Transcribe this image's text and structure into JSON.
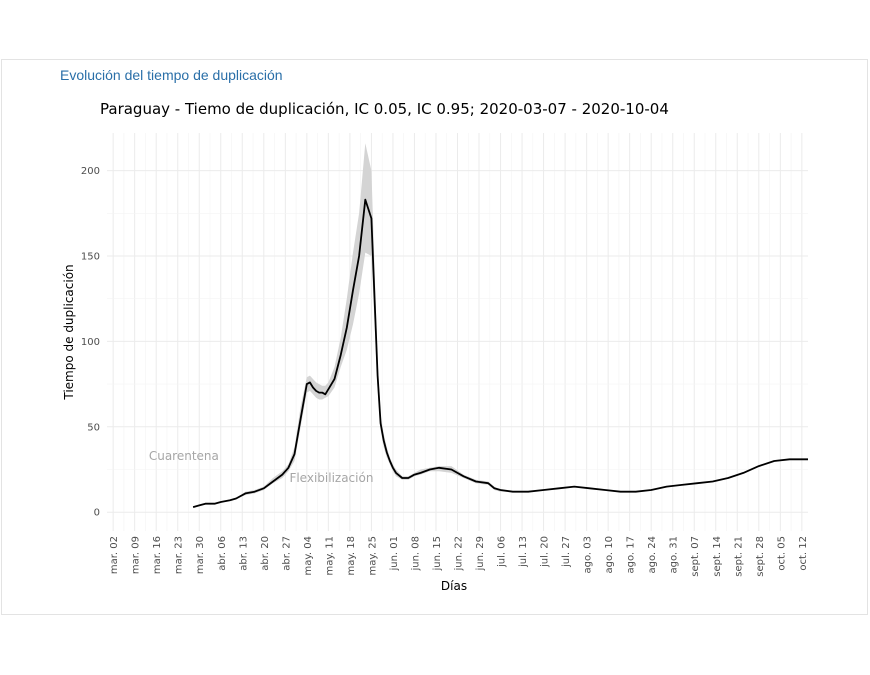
{
  "section": {
    "title": "Evolución del tiempo de duplicación"
  },
  "chart_data": {
    "type": "line",
    "title": "Paraguay - Tiemo de duplicación, IC 0.05, IC 0.95;  2020-03-07 - 2020-10-04",
    "xlabel": "Días",
    "ylabel": "Tiempo de duplicación",
    "ylim": [
      -11,
      222
    ],
    "yticks": [
      0,
      50,
      100,
      150,
      200
    ],
    "x_tick_labels": [
      "mar. 02",
      "mar. 09",
      "mar. 16",
      "mar. 23",
      "mar. 30",
      "abr. 06",
      "abr. 13",
      "abr. 20",
      "abr. 27",
      "may. 04",
      "may. 11",
      "may. 18",
      "may. 25",
      "jun. 01",
      "jun. 08",
      "jun. 15",
      "jun. 22",
      "jun. 29",
      "jul. 06",
      "jul. 13",
      "jul. 20",
      "jul. 27",
      "ago. 03",
      "ago. 10",
      "ago. 17",
      "ago. 24",
      "ago. 31",
      "sept. 07",
      "sept. 14",
      "sept. 21",
      "sept. 28",
      "oct. 05",
      "oct. 12"
    ],
    "x_range_days": [
      -2,
      226
    ],
    "grid": true,
    "legend": "none",
    "annotations": [
      {
        "text": "Cuarentena",
        "day": 23,
        "y": 33
      },
      {
        "text": "Flexibilización",
        "day": 71,
        "y": 20
      }
    ],
    "series": [
      {
        "name": "Tiempo de duplicación",
        "color": "#000000",
        "x": [
          26,
          28,
          30,
          33,
          35,
          38,
          40,
          43,
          46,
          49,
          52,
          55,
          57,
          59,
          61,
          63,
          64,
          65,
          66,
          67,
          68,
          69,
          70,
          72,
          74,
          76,
          78,
          80,
          82,
          84,
          86,
          87,
          88,
          89,
          90,
          91,
          92,
          94,
          96,
          98,
          100,
          103,
          106,
          110,
          114,
          118,
          122,
          124,
          126,
          130,
          135,
          140,
          145,
          150,
          155,
          160,
          165,
          170,
          175,
          180,
          185,
          190,
          195,
          200,
          205,
          210,
          215,
          220,
          226
        ],
        "values": [
          3,
          4,
          5,
          5,
          6,
          7,
          8,
          11,
          12,
          14,
          18,
          22,
          26,
          34,
          55,
          75,
          76,
          73,
          71,
          70,
          70,
          69,
          72,
          78,
          92,
          108,
          130,
          150,
          183,
          172,
          80,
          52,
          42,
          35,
          30,
          26,
          23,
          20,
          20,
          22,
          23,
          25,
          26,
          25,
          21,
          18,
          17,
          14,
          13,
          12,
          12,
          13,
          14,
          15,
          14,
          13,
          12,
          12,
          13,
          15,
          16,
          17,
          18,
          20,
          23,
          27,
          30,
          31,
          31
        ],
        "ci_low": [
          3,
          4,
          5,
          5,
          6,
          7,
          8,
          10,
          11,
          13,
          17,
          20,
          24,
          30,
          50,
          70,
          71,
          69,
          67,
          66,
          66,
          67,
          68,
          73,
          85,
          95,
          110,
          128,
          152,
          150,
          72,
          48,
          38,
          32,
          28,
          24,
          21,
          19,
          19,
          21,
          22,
          24,
          24,
          23,
          20,
          17,
          16,
          13,
          12,
          12,
          12,
          13,
          14,
          15,
          14,
          13,
          12,
          12,
          13,
          15,
          16,
          17,
          18,
          20,
          23,
          27,
          30,
          31,
          31
        ],
        "ci_high": [
          3,
          4,
          5,
          5,
          6,
          7,
          8,
          12,
          13,
          15,
          20,
          24,
          28,
          38,
          62,
          79,
          80,
          78,
          76,
          75,
          74,
          74,
          76,
          85,
          102,
          125,
          152,
          175,
          216,
          200,
          88,
          57,
          46,
          38,
          32,
          28,
          25,
          21,
          21,
          23,
          25,
          26,
          27,
          27,
          22,
          19,
          18,
          15,
          13,
          12,
          12,
          13,
          14,
          15,
          14,
          13,
          12,
          12,
          13,
          15,
          16,
          17,
          18,
          20,
          23,
          27,
          30,
          31,
          31
        ]
      }
    ]
  }
}
